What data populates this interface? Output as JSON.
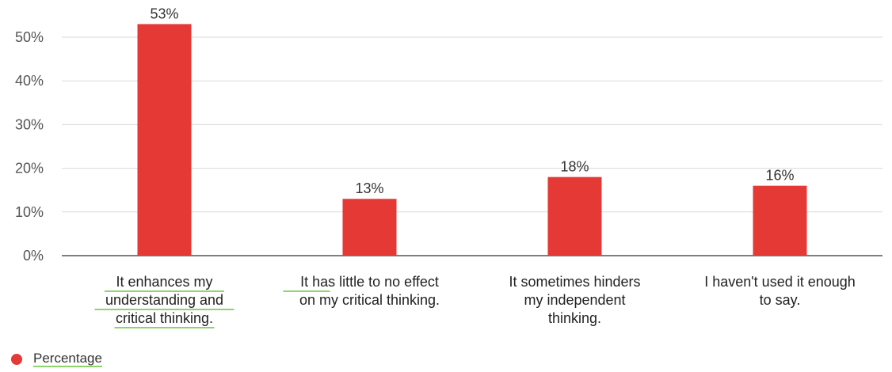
{
  "chart_data": {
    "type": "bar",
    "categories": [
      [
        "It enhances my",
        "understanding and",
        "critical thinking."
      ],
      [
        "It has little to no effect",
        "on my critical thinking."
      ],
      [
        "It sometimes hinders",
        "my independent",
        "thinking."
      ],
      [
        "I haven't used it enough",
        "to say."
      ]
    ],
    "series": [
      {
        "name": "Percentage",
        "values": [
          53,
          13,
          18,
          16
        ],
        "labels": [
          "53%",
          "13%",
          "18%",
          "16%"
        ]
      }
    ],
    "ylim": [
      0,
      55
    ],
    "yticks": [
      0,
      10,
      20,
      30,
      40,
      50
    ],
    "ytick_labels": [
      "0%",
      "10%",
      "20%",
      "30%",
      "40%",
      "50%"
    ],
    "grid": true,
    "legend": "bottom-left",
    "colors": {
      "bar": "#e53935",
      "grid": "#d9d9d9",
      "axis": "#333333",
      "underline": "#8ed36b"
    }
  }
}
